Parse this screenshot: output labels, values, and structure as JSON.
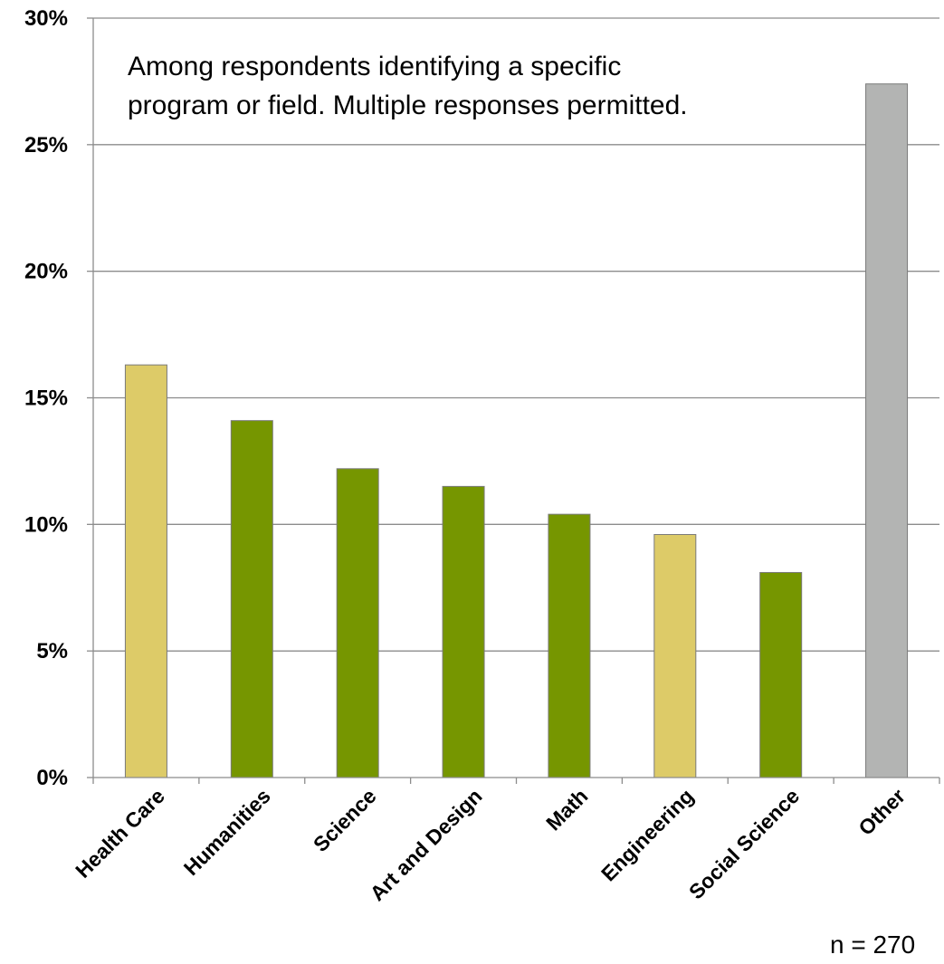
{
  "chart_data": {
    "type": "bar",
    "categories": [
      "Health Care",
      "Humanities",
      "Science",
      "Art and Design",
      "Math",
      "Engineering",
      "Social Science",
      "Other"
    ],
    "values": [
      16.3,
      14.1,
      12.2,
      11.5,
      10.4,
      9.6,
      8.1,
      27.4
    ],
    "bar_colors": [
      "#DDCB68",
      "#769600",
      "#769600",
      "#769600",
      "#769600",
      "#DDCB68",
      "#769600",
      "#B3B4B3"
    ],
    "ylim": [
      0,
      30
    ],
    "yticks": [
      "0%",
      "5%",
      "10%",
      "15%",
      "20%",
      "25%",
      "30%"
    ],
    "ytick_values": [
      0,
      5,
      10,
      15,
      20,
      25,
      30
    ],
    "grid": true,
    "annotation_lines": [
      "Among respondents identifying a specific",
      "program or field.  Multiple responses permitted."
    ],
    "sample_size_label": "n = 270"
  }
}
